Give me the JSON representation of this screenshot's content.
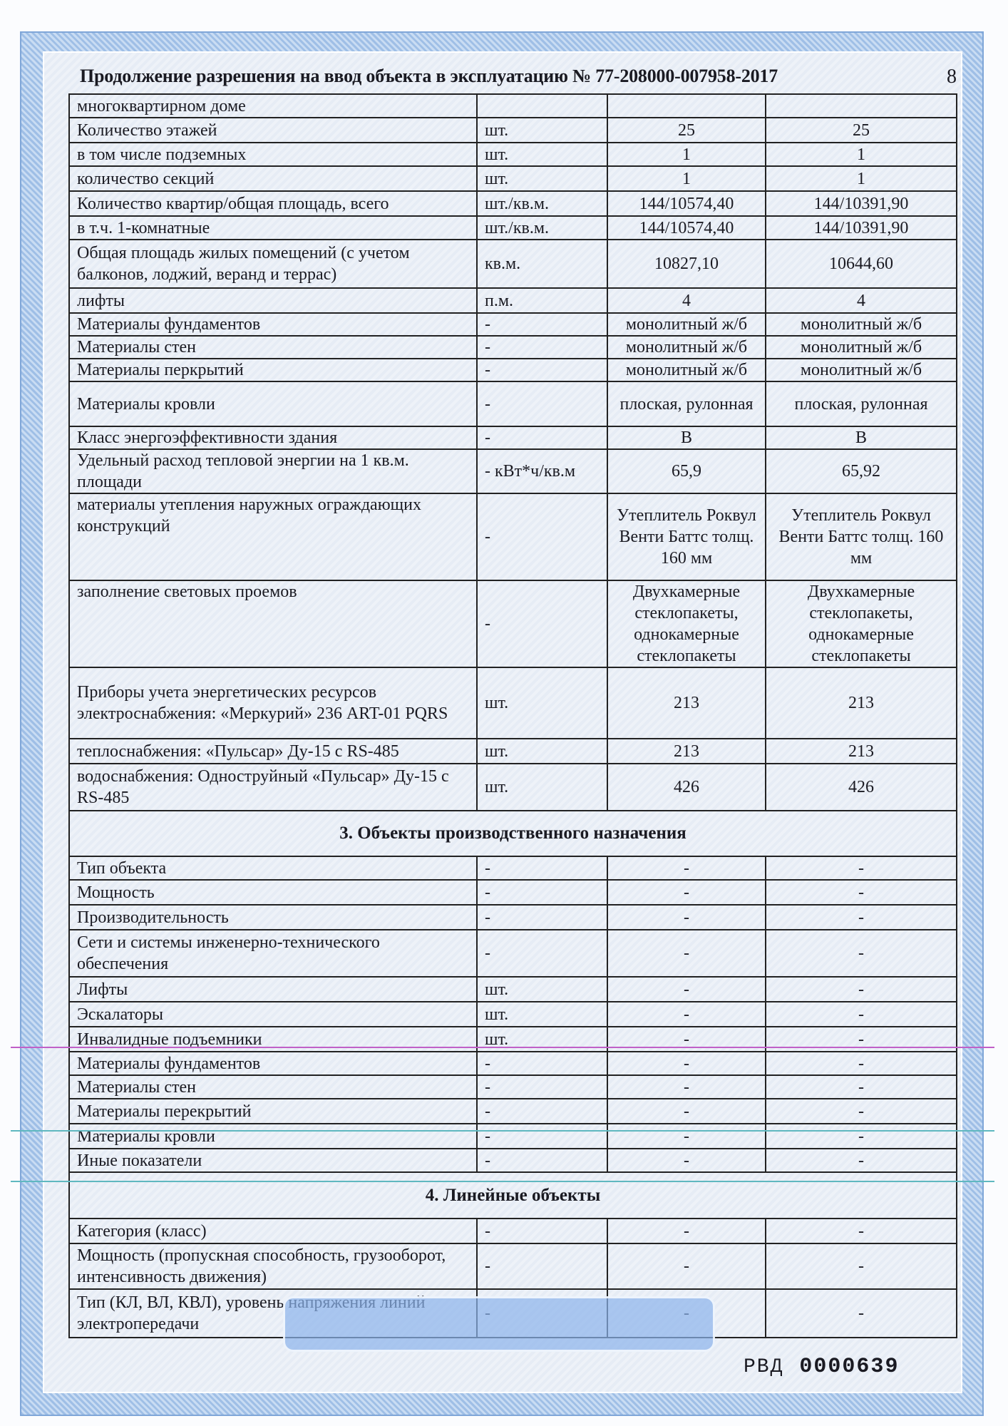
{
  "header": {
    "title": "Продолжение разрешения на ввод объекта в эксплуатацию № 77-208000-007958-2017",
    "page_number": "8"
  },
  "rows": [
    {
      "cells": [
        "многоквартирном доме",
        "",
        "",
        ""
      ]
    },
    {
      "cells": [
        "Количество этажей",
        "шт.",
        "25",
        "25"
      ]
    },
    {
      "cells": [
        "в том числе подземных",
        "шт.",
        "1",
        "1"
      ]
    },
    {
      "cells": [
        "количество секций",
        "шт.",
        "1",
        "1"
      ]
    },
    {
      "cells": [
        "Количество квартир/общая площадь, всего",
        "шт./кв.м.",
        "144/10574,40",
        "144/10391,90"
      ]
    },
    {
      "cells": [
        "в т.ч. 1-комнатные",
        "шт./кв.м.",
        "144/10574,40",
        "144/10391,90"
      ]
    },
    {
      "cells": [
        "Общая площадь жилых помещений (с учетом балконов, лоджий, веранд и террас)",
        "кв.м.",
        "10827,10",
        "10644,60"
      ]
    },
    {
      "cells": [
        "лифты",
        "п.м.",
        "4",
        "4"
      ]
    },
    {
      "cells": [
        "Материалы   фундаментов",
        "-",
        "монолитный ж/б",
        "монолитный ж/б"
      ]
    },
    {
      "cells": [
        "Материалы   стен",
        "-",
        "монолитный ж/б",
        "монолитный ж/б"
      ]
    },
    {
      "cells": [
        "Материалы   перкрытий",
        "-",
        "монолитный ж/б",
        "монолитный ж/б"
      ]
    },
    {
      "cells": [
        "Материалы кровли",
        "-",
        "плоская, рулонная",
        "плоская, рулонная"
      ]
    },
    {
      "cells": [
        "Класс энергоэффективности здания",
        "-",
        "B",
        "B"
      ]
    },
    {
      "cells": [
        "Удельный расход тепловой энергии на 1 кв.м. площади",
        "-   кВт*ч/кв.м",
        "65,9",
        "65,92"
      ]
    },
    {
      "cells": [
        "материалы утепления наружных ограждающих конструкций",
        "-",
        "Утеплитель Роквул Венти Баттс   толщ. 160 мм",
        "Утеплитель Роквул Венти Баттс   толщ. 160 мм"
      ]
    },
    {
      "cells": [
        "заполнение световых проемов",
        "-",
        "Двухкамерные стеклопакеты, однокамерные стеклопакеты",
        "Двухкамерные стеклопакеты, однокамерные стеклопакеты"
      ]
    },
    {
      "cells": [
        "Приборы учета энергетических ресурсов электроснабжения: «Меркурий» 236 ART-01 PQRS",
        "шт.",
        "213",
        "213"
      ]
    },
    {
      "cells": [
        "теплоснабжения: «Пульсар» Ду-15 с RS-485",
        "шт.",
        "213",
        "213"
      ]
    },
    {
      "cells": [
        "водоснабжения: Одноструйный «Пульсар» Ду-15 с RS-485",
        "шт.",
        "426",
        "426"
      ]
    },
    {
      "section": "3. Объекты производственного назначения"
    },
    {
      "cells": [
        "Тип объекта",
        "-",
        "-",
        "-"
      ]
    },
    {
      "cells": [
        "Мощность",
        "-",
        "-",
        "-"
      ]
    },
    {
      "cells": [
        "Производительность",
        "-",
        "-",
        "-"
      ]
    },
    {
      "cells": [
        "Сети и системы инженерно-технического обеспечения",
        "-",
        "-",
        "-"
      ]
    },
    {
      "cells": [
        "Лифты",
        "шт.",
        "-",
        "-"
      ]
    },
    {
      "cells": [
        "Эскалаторы",
        "шт.",
        "-",
        "-"
      ]
    },
    {
      "cells": [
        "Инвалидные подъемники",
        "шт.",
        "-",
        "-"
      ]
    },
    {
      "cells": [
        "Материалы фундаментов",
        "-",
        "-",
        "-"
      ]
    },
    {
      "cells": [
        "Материалы стен",
        "-",
        "-",
        "-"
      ]
    },
    {
      "cells": [
        "Материалы перекрытий",
        "-",
        "-",
        "-"
      ]
    },
    {
      "cells": [
        "Материалы кровли",
        "-",
        "-",
        "-"
      ]
    },
    {
      "cells": [
        "Иные показатели",
        "-",
        "-",
        "-"
      ]
    },
    {
      "section": "4. Линейные объекты"
    },
    {
      "cells": [
        "Категория (класс)",
        "-",
        "-",
        "-"
      ]
    },
    {
      "cells": [
        "Мощность (пропускная способность, грузооборот, интенсивность движения)",
        "-",
        "-",
        "-"
      ]
    },
    {
      "cells": [
        "Тип (КЛ, ВЛ, КВЛ), уровень напряжения линий электропередачи",
        "-",
        "-",
        "-"
      ]
    }
  ],
  "serial": {
    "prefix": "РВД",
    "number": "0000639"
  }
}
